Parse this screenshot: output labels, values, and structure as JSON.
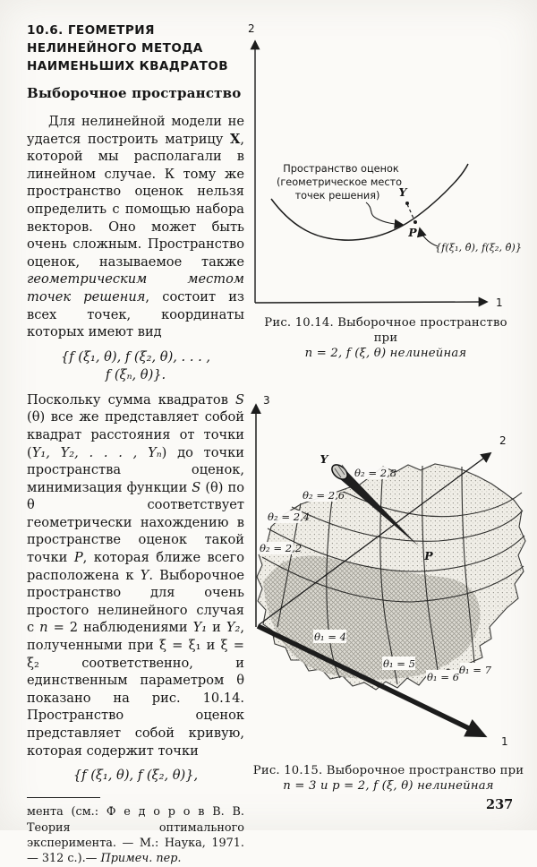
{
  "page_number": "237",
  "heading": {
    "lines": [
      "10.6. ГЕОМЕТРИЯ",
      "НЕЛИНЕЙНОГО МЕТОДА",
      "НАИМЕНЬШИХ КВАДРАТОВ"
    ],
    "subheading": "Выборочное пространство"
  },
  "body": {
    "para1_runs": [
      {
        "t": "Для нелинейной модели не удается построить матрицу ",
        "s": "n"
      },
      {
        "t": "X",
        "s": "b"
      },
      {
        "t": ", которой мы располагали в линейном случае. К тому же пространство оценок нельзя определить с помощью набора векторов. Оно может быть очень сложным. Пространство оценок, называемое также ",
        "s": "n"
      },
      {
        "t": "геометрическим местом точек решения",
        "s": "i"
      },
      {
        "t": ", состоит из всех точек, координаты которых имеют вид",
        "s": "n"
      }
    ],
    "formula1_line1": "{f (ξ₁, θ),  f (ξ₂, θ),  .  .  .  ,",
    "formula1_line2": "f (ξₙ, θ)}.",
    "para2_runs": [
      {
        "t": "Поскольку сумма квадратов ",
        "s": "n"
      },
      {
        "t": "S ",
        "s": "i"
      },
      {
        "t": "(θ) все же представляет собой квадрат расстояния от точки (",
        "s": "n"
      },
      {
        "t": "Y₁, Y₂, . . . , Yₙ",
        "s": "i"
      },
      {
        "t": ") до точки пространства оценок, минимизация функции ",
        "s": "n"
      },
      {
        "t": "S ",
        "s": "i"
      },
      {
        "t": "(θ) по θ соответствует геометрически нахождению в пространстве оценок такой точки ",
        "s": "n"
      },
      {
        "t": "P",
        "s": "i"
      },
      {
        "t": ", которая ближе всего расположена к ",
        "s": "n"
      },
      {
        "t": "Y",
        "s": "i"
      },
      {
        "t": ". Выборочное пространство для очень простого нелинейного случая с ",
        "s": "n"
      },
      {
        "t": "n",
        "s": "i"
      },
      {
        "t": " = 2 наблюдениями ",
        "s": "n"
      },
      {
        "t": "Y₁",
        "s": "i"
      },
      {
        "t": " и ",
        "s": "n"
      },
      {
        "t": "Y₂",
        "s": "i"
      },
      {
        "t": ", полученными при ξ = ξ₁ и ξ = ξ₂ соответственно, и единственным параметром θ показано на рис. 10.14. Пространство оценок представляет собой кривую, которая содержит точки",
        "s": "n"
      }
    ],
    "formula2": "{f (ξ₁, θ),  f (ξ₂, θ)},",
    "footnote_runs": [
      {
        "t": "мента (см.: Ф е д о р о в  В.  В. Теория оптимального эксперимента. — М.:  Наука,  1971.— 312 с.).— ",
        "s": "n"
      },
      {
        "t": "Примеч. пер.",
        "s": "i"
      }
    ]
  },
  "fig1014": {
    "axis_vertical": "2",
    "axis_horizontal": "1",
    "annotation_lines": [
      "Пространство оценок",
      "(геометрическое место",
      "точек решения)"
    ],
    "label_y": "Y",
    "label_p": "P",
    "point_formula": "{f(ξ₁, θ̂), f(ξ₂, θ̂)}",
    "caption_line1": "Рис. 10.14.  Выборочное пространство при",
    "caption_line2": "n = 2, f (ξ, θ) нелинейная"
  },
  "fig1015": {
    "axis_1": "1",
    "axis_2": "2",
    "axis_3": "3",
    "label_y": "Y",
    "label_p": "P",
    "theta2_labels": [
      "θ₂ = 2,8",
      "θ₂ = 2,6",
      "θ₂ = 2,4",
      "θ₂ = 2,2"
    ],
    "theta1_labels": [
      "θ₁ = 4",
      "θ₁ = 5",
      "θ₁ = 6",
      "θ₁ = 7"
    ],
    "caption_line1": "Рис. 10.15. Выборочное пространство при",
    "caption_line2": "n = 3 и p = 2, f (ξ, θ) нелинейная"
  }
}
